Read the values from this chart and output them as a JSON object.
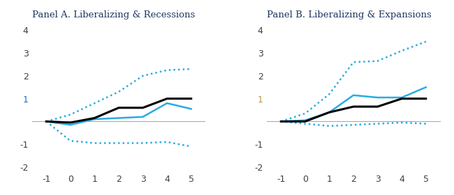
{
  "panel_a": {
    "title": "Panel A. Liberalizing & Recessions",
    "x": [
      -1,
      0,
      1,
      2,
      3,
      4,
      5
    ],
    "black_line": [
      0.0,
      -0.05,
      0.15,
      0.6,
      0.6,
      1.0,
      1.0
    ],
    "blue_line": [
      0.0,
      -0.15,
      0.1,
      0.15,
      0.2,
      0.8,
      0.55
    ],
    "upper_ci": [
      0.0,
      0.3,
      0.8,
      1.3,
      2.0,
      2.25,
      2.3
    ],
    "lower_ci": [
      0.0,
      -0.85,
      -0.95,
      -0.95,
      -0.95,
      -0.9,
      -1.1
    ]
  },
  "panel_b": {
    "title": "Panel B. Liberalizing & Expansions",
    "x": [
      -1,
      0,
      1,
      2,
      3,
      4,
      5
    ],
    "black_line": [
      0.0,
      0.0,
      0.4,
      0.65,
      0.65,
      1.0,
      1.0
    ],
    "blue_line": [
      0.0,
      0.05,
      0.4,
      1.15,
      1.05,
      1.05,
      1.5
    ],
    "upper_ci": [
      0.0,
      0.35,
      1.2,
      2.6,
      2.65,
      3.1,
      3.5
    ],
    "lower_ci": [
      0.0,
      -0.1,
      -0.2,
      -0.15,
      -0.1,
      -0.05,
      -0.1
    ]
  },
  "ylim": [
    -2.2,
    4.3
  ],
  "yticks": [
    -2,
    -1,
    1,
    2,
    3,
    4
  ],
  "xticks": [
    -1,
    0,
    1,
    2,
    3,
    4,
    5
  ],
  "blue_color": "#29ABE2",
  "black_color": "#000000",
  "ci_color": "#29ABE2",
  "title_color": "#1F3864",
  "tick_color": "#C0904A",
  "zero_line_color": "#AAAAAA",
  "bg_color": "#FFFFFF",
  "panel_a_y1_color": "#1F6CBF",
  "panel_b_y1_color": "#C0904A"
}
